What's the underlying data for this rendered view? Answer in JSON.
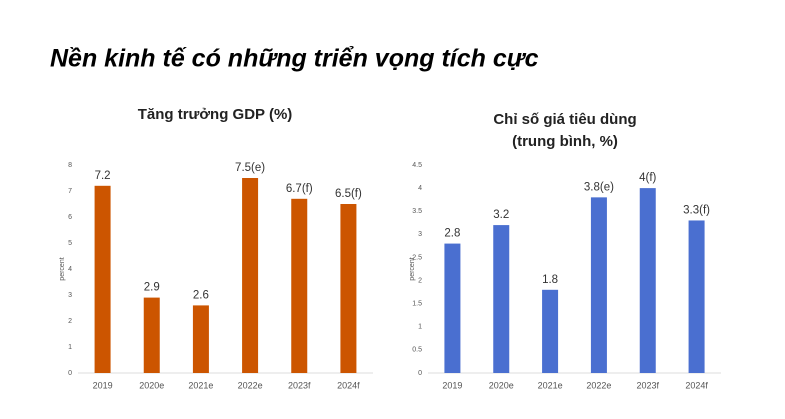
{
  "heading": "Nền kinh tế có những triển vọng tích cực",
  "chart_data": [
    {
      "type": "bar",
      "title": [
        "Tăng trưởng GDP (%)"
      ],
      "ylabel": "percent",
      "categories": [
        "2019",
        "2020e",
        "2021e",
        "2022e",
        "2023f",
        "2024f"
      ],
      "values": [
        7.2,
        2.9,
        2.6,
        7.5,
        6.7,
        6.5
      ],
      "value_labels": [
        "7.2",
        "2.9",
        "2.6",
        "7.5(e)",
        "6.7(f)",
        "6.5(f)"
      ],
      "color": "#cc5500",
      "ylim": [
        0,
        8
      ],
      "yticks": [
        0,
        1,
        2,
        3,
        4,
        5,
        6,
        7,
        8
      ]
    },
    {
      "type": "bar",
      "title": [
        "Chỉ số giá tiêu dùng",
        "(trung bình, %)"
      ],
      "ylabel": "percent",
      "categories": [
        "2019",
        "2020e",
        "2021e",
        "2022e",
        "2023f",
        "2024f"
      ],
      "values": [
        2.8,
        3.2,
        1.8,
        3.8,
        4,
        3.3
      ],
      "value_labels": [
        "2.8",
        "3.2",
        "1.8",
        "3.8(e)",
        "4(f)",
        "3.3(f)"
      ],
      "color": "#4a6fd0",
      "ylim": [
        0,
        4.5
      ],
      "yticks": [
        0,
        0.5,
        1,
        1.5,
        2,
        2.5,
        3,
        3.5,
        4,
        4.5
      ]
    }
  ]
}
